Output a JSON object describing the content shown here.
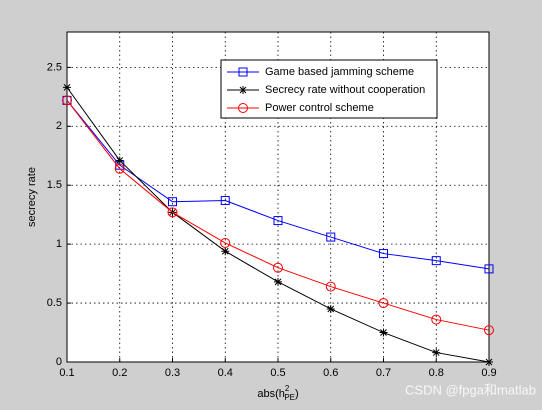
{
  "chart_data": {
    "type": "line",
    "x_label": {
      "base": "abs(h",
      "sup": "2",
      "sub": "PE",
      "close": ")"
    },
    "y_label": "secrecy rate",
    "x": [
      0.1,
      0.2,
      0.3,
      0.4,
      0.5,
      0.6,
      0.7,
      0.8,
      0.9
    ],
    "series": [
      {
        "name": "Game based jamming scheme",
        "color": "#0000ff",
        "marker": "square",
        "values": [
          2.22,
          1.67,
          1.36,
          1.37,
          1.2,
          1.06,
          0.92,
          0.86,
          0.79
        ]
      },
      {
        "name": "Secrecy rate without cooperation",
        "color": "#000000",
        "marker": "asterisk",
        "values": [
          2.33,
          1.71,
          1.27,
          0.94,
          0.68,
          0.45,
          0.25,
          0.08,
          0.0
        ]
      },
      {
        "name": "Power control scheme",
        "color": "#ff0000",
        "marker": "circle",
        "values": [
          2.22,
          1.64,
          1.27,
          1.01,
          0.8,
          0.64,
          0.5,
          0.36,
          0.27
        ]
      }
    ],
    "xlim": [
      0.1,
      0.9
    ],
    "xticks": [
      0.1,
      0.2,
      0.3,
      0.4,
      0.5,
      0.6,
      0.7,
      0.8,
      0.9
    ],
    "ylim": [
      0,
      2.8
    ],
    "yticks": [
      0,
      0.5,
      1,
      1.5,
      2,
      2.5
    ],
    "grid": true,
    "legend": "upper right",
    "watermark": "CSDN @fpga和matlab"
  }
}
